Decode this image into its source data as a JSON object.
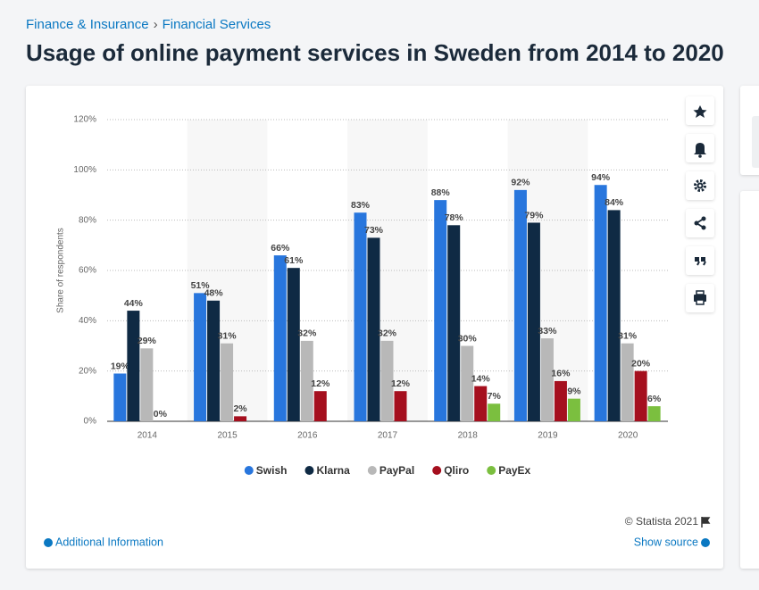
{
  "breadcrumb": [
    "Finance & Insurance",
    "Financial Services"
  ],
  "breadcrumb_separator": "›",
  "footer": {
    "copyright": "© Statista 2021",
    "additional_info": "Additional Information",
    "show_source": "Show source"
  },
  "chart_data": {
    "type": "bar",
    "title": "Usage of online payment services in Sweden from 2014 to 2020",
    "y_label": "Share of respondents",
    "categories": [
      "2014",
      "2015",
      "2016",
      "2017",
      "2018",
      "2019",
      "2020"
    ],
    "series": [
      {
        "name": "Swish",
        "color": "#2876dd",
        "values": [
          19,
          51,
          66,
          83,
          88,
          92,
          94
        ],
        "value_labels": [
          "19%",
          "51%",
          "66%",
          "83%",
          "88%",
          "92%",
          "94%"
        ]
      },
      {
        "name": "Klarna",
        "color": "#0f2a44",
        "values": [
          44,
          48,
          61,
          73,
          78,
          79,
          84
        ],
        "value_labels": [
          "44%",
          "48%",
          "61%",
          "73%",
          "78%",
          "79%",
          "84%"
        ]
      },
      {
        "name": "PayPal",
        "color": "#b8b8b8",
        "values": [
          29,
          31,
          32,
          32,
          30,
          33,
          31
        ],
        "value_labels": [
          "29%",
          "31%",
          "32%",
          "32%",
          "30%",
          "33%",
          "31%"
        ]
      },
      {
        "name": "Qliro",
        "color": "#a50f1e",
        "values": [
          0,
          2,
          12,
          12,
          14,
          16,
          20
        ],
        "value_labels": [
          "0%",
          "2%",
          "12%",
          "12%",
          "14%",
          "16%",
          "20%"
        ]
      },
      {
        "name": "PayEx",
        "color": "#7bbf3f",
        "values": [
          null,
          null,
          null,
          null,
          7,
          9,
          6
        ],
        "value_labels": [
          null,
          null,
          null,
          null,
          "7%",
          "9%",
          "6%"
        ]
      }
    ],
    "ylim": [
      0,
      120
    ],
    "yticks": [
      {
        "value": 0,
        "label": "0%"
      },
      {
        "value": 20,
        "label": "20%"
      },
      {
        "value": 40,
        "label": "40%"
      },
      {
        "value": 60,
        "label": "60%"
      },
      {
        "value": 80,
        "label": "80%"
      },
      {
        "value": 100,
        "label": "100%"
      },
      {
        "value": 120,
        "label": "120%"
      }
    ],
    "grid": true,
    "legend": "bottom"
  }
}
